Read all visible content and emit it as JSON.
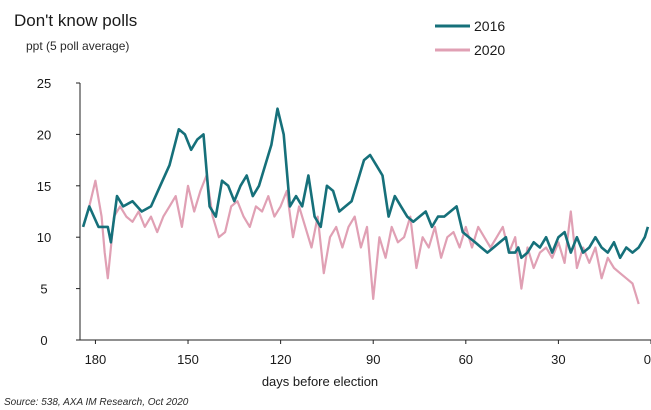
{
  "chart_data": {
    "type": "line",
    "title": "Don't know polls",
    "subtitle": "ppt (5 poll average)",
    "xlabel": "days before election",
    "ylabel": "",
    "source": "Source: 538, AXA IM Research, Oct 2020",
    "xlim": [
      185,
      0
    ],
    "ylim": [
      0,
      25
    ],
    "x_ticks": [
      180,
      150,
      120,
      90,
      60,
      30,
      0
    ],
    "y_ticks": [
      0,
      5,
      10,
      15,
      20,
      25
    ],
    "legend_position": "top-right",
    "grid": false,
    "series": [
      {
        "name": "2016",
        "color": "#16707a",
        "x": [
          184,
          182,
          179,
          176,
          175,
          173,
          171,
          168,
          165,
          162,
          159,
          156,
          153,
          151,
          149,
          147,
          145,
          143,
          141,
          139,
          137,
          135,
          133,
          131,
          129,
          127,
          125,
          123,
          121,
          119,
          117,
          115,
          113,
          111,
          109,
          107,
          105,
          103,
          101,
          99,
          97,
          95,
          93,
          91,
          89,
          87,
          85,
          83,
          81,
          79,
          77,
          75,
          73,
          71,
          69,
          67,
          65,
          63,
          61,
          59,
          57,
          55,
          53,
          51,
          49,
          47,
          46,
          44,
          43,
          42,
          40,
          38,
          36,
          34,
          32,
          30,
          28,
          26,
          24,
          22,
          20,
          18,
          16,
          14,
          12,
          10,
          8,
          6,
          4,
          2,
          1
        ],
        "y": [
          11,
          13,
          11,
          11,
          9.5,
          14,
          13,
          13.5,
          12.5,
          13,
          15,
          17,
          20.5,
          20,
          18.5,
          19.5,
          20,
          13,
          12,
          15.5,
          15,
          13.5,
          15,
          16,
          14,
          15,
          17,
          19,
          22.5,
          20,
          13,
          14,
          13,
          16,
          12,
          11,
          15,
          14.5,
          12.5,
          13,
          13.5,
          15.5,
          17.5,
          18,
          17,
          16,
          12,
          14,
          13,
          12,
          11.5,
          12,
          12.5,
          11,
          12,
          12,
          12.5,
          13,
          10.5,
          10,
          9.5,
          9,
          8.5,
          9,
          9.5,
          10,
          8.5,
          8.5,
          9,
          8,
          8.5,
          9.5,
          9,
          10,
          8.5,
          10,
          10.5,
          8.5,
          10,
          8.5,
          9,
          10,
          9,
          8.5,
          9.5,
          8,
          9,
          8.5,
          9,
          10,
          11
        ]
      },
      {
        "name": "2020",
        "color": "#e0a0b4",
        "x": [
          184,
          182,
          180,
          178,
          177,
          176,
          175,
          174,
          172,
          170,
          168,
          166,
          164,
          162,
          160,
          158,
          156,
          154,
          152,
          150,
          148,
          146,
          144,
          142,
          140,
          138,
          136,
          134,
          132,
          130,
          128,
          126,
          124,
          122,
          120,
          118,
          116,
          114,
          112,
          110,
          108,
          106,
          104,
          102,
          100,
          98,
          96,
          94,
          92,
          90,
          88,
          86,
          84,
          82,
          80,
          78,
          76,
          74,
          72,
          70,
          68,
          66,
          64,
          62,
          60,
          58,
          56,
          54,
          52,
          50,
          48,
          46,
          44,
          42,
          40,
          38,
          36,
          34,
          32,
          30,
          28,
          26,
          24,
          22,
          20,
          18,
          16,
          14,
          12,
          10,
          8,
          6,
          5,
          4
        ],
        "y": [
          11,
          13,
          15.5,
          12,
          8.5,
          6,
          9,
          12,
          13,
          12,
          11.5,
          12.5,
          11,
          12,
          10.5,
          12,
          13,
          14,
          11,
          15,
          12.5,
          14.5,
          16,
          12,
          10,
          10.5,
          13,
          13.5,
          12,
          11,
          13,
          12.5,
          14,
          12,
          13,
          14.5,
          10,
          13,
          11,
          9,
          12,
          6.5,
          10,
          11,
          9,
          11,
          12,
          9,
          11,
          4,
          10,
          8,
          11,
          9.5,
          10,
          12,
          7,
          10,
          9,
          11,
          8,
          10,
          10.5,
          9,
          11,
          9,
          11,
          10,
          9,
          10,
          11,
          8.5,
          10,
          5,
          9,
          7,
          8.5,
          9,
          8,
          9.5,
          7.5,
          12.5,
          7,
          9,
          7.5,
          9,
          6,
          8,
          7,
          6.5,
          6,
          5.5,
          4.5,
          3.5
        ]
      }
    ]
  }
}
